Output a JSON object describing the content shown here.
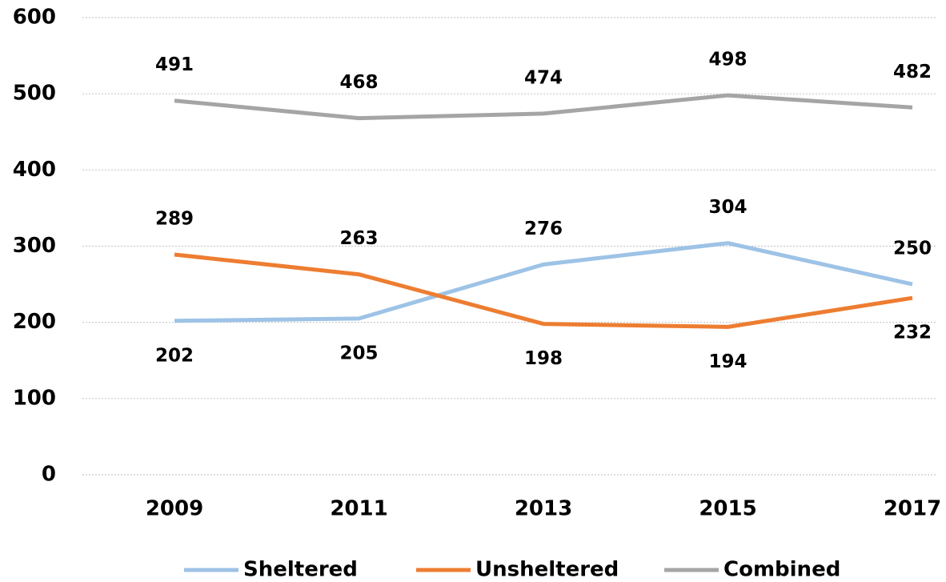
{
  "chart_data": {
    "type": "line",
    "categories": [
      "2009",
      "2011",
      "2013",
      "2015",
      "2017"
    ],
    "series": [
      {
        "name": "Sheltered",
        "color": "#9dc3e6",
        "values": [
          202,
          205,
          276,
          304,
          250
        ]
      },
      {
        "name": "Unsheltered",
        "color": "#ed7d31",
        "values": [
          289,
          263,
          198,
          194,
          232
        ]
      },
      {
        "name": "Combined",
        "color": "#a5a5a5",
        "values": [
          491,
          468,
          474,
          498,
          482
        ]
      }
    ],
    "ylim": [
      0,
      600
    ],
    "yticks": [
      0,
      100,
      200,
      300,
      400,
      500,
      600
    ],
    "grid": true,
    "legend": "bottom"
  }
}
